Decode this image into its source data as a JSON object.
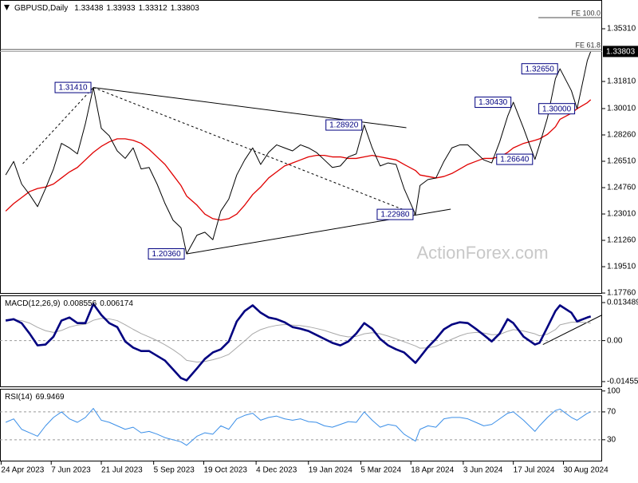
{
  "chart_data": [
    {
      "type": "line",
      "title": "GBPUSD,Daily",
      "header_values": [
        1.33438,
        1.33933,
        1.33312,
        1.33803
      ],
      "x": [
        "2023-04-28",
        "2023-05-05",
        "2023-05-12",
        "2023-05-19",
        "2023-05-26",
        "2023-06-02",
        "2023-06-09",
        "2023-06-16",
        "2023-06-23",
        "2023-06-30",
        "2023-07-07",
        "2023-07-14",
        "2023-07-21",
        "2023-07-28",
        "2023-08-04",
        "2023-08-11",
        "2023-08-18",
        "2023-08-25",
        "2023-09-01",
        "2023-09-08",
        "2023-09-15",
        "2023-09-22",
        "2023-09-29",
        "2023-10-04",
        "2023-10-13",
        "2023-10-20",
        "2023-10-27",
        "2023-11-03",
        "2023-11-10",
        "2023-11-17",
        "2023-11-24",
        "2023-12-01",
        "2023-12-08",
        "2023-12-15",
        "2023-12-22",
        "2023-12-29",
        "2024-01-05",
        "2024-01-12",
        "2024-01-19",
        "2024-01-26",
        "2024-02-02",
        "2024-02-09",
        "2024-02-16",
        "2024-02-23",
        "2024-03-01",
        "2024-03-08",
        "2024-03-15",
        "2024-03-22",
        "2024-03-29",
        "2024-04-05",
        "2024-04-12",
        "2024-04-22",
        "2024-04-26",
        "2024-05-03",
        "2024-05-10",
        "2024-05-17",
        "2024-05-24",
        "2024-05-31",
        "2024-06-07",
        "2024-06-14",
        "2024-06-21",
        "2024-06-28",
        "2024-07-05",
        "2024-07-12",
        "2024-07-17",
        "2024-07-26",
        "2024-08-05",
        "2024-08-09",
        "2024-08-16",
        "2024-08-23",
        "2024-08-27",
        "2024-09-06",
        "2024-09-11",
        "2024-09-20",
        "2024-09-23"
      ],
      "series": [
        {
          "color": "#000000",
          "width": 1,
          "values": [
            1.256,
            1.265,
            1.25,
            1.243,
            1.235,
            1.247,
            1.26,
            1.277,
            1.274,
            1.27,
            1.29,
            1.3141,
            1.287,
            1.282,
            1.272,
            1.267,
            1.274,
            1.26,
            1.261,
            1.25,
            1.237,
            1.226,
            1.221,
            1.2036,
            1.216,
            1.218,
            1.213,
            1.232,
            1.24,
            1.256,
            1.266,
            1.274,
            1.263,
            1.271,
            1.276,
            1.274,
            1.272,
            1.276,
            1.274,
            1.271,
            1.266,
            1.261,
            1.262,
            1.268,
            1.27,
            1.2892,
            1.274,
            1.262,
            1.264,
            1.263,
            1.247,
            1.2298,
            1.249,
            1.253,
            1.254,
            1.265,
            1.274,
            1.276,
            1.276,
            1.271,
            1.266,
            1.264,
            1.278,
            1.295,
            1.3043,
            1.287,
            1.2664,
            1.276,
            1.294,
            1.32,
            1.3265,
            1.312,
            1.3,
            1.332,
            1.33803
          ]
        },
        {
          "color": "#e00000",
          "width": 1.3,
          "values": [
            1.232,
            1.237,
            1.241,
            1.245,
            1.247,
            1.248,
            1.25,
            1.254,
            1.258,
            1.261,
            1.266,
            1.271,
            1.275,
            1.278,
            1.28,
            1.28,
            1.279,
            1.277,
            1.273,
            1.268,
            1.263,
            1.256,
            1.249,
            1.242,
            1.236,
            1.23,
            1.227,
            1.226,
            1.227,
            1.23,
            1.236,
            1.243,
            1.248,
            1.254,
            1.258,
            1.262,
            1.264,
            1.266,
            1.268,
            1.269,
            1.269,
            1.268,
            1.268,
            1.267,
            1.267,
            1.268,
            1.269,
            1.268,
            1.267,
            1.266,
            1.263,
            1.259,
            1.256,
            1.255,
            1.254,
            1.255,
            1.257,
            1.26,
            1.263,
            1.265,
            1.267,
            1.267,
            1.268,
            1.271,
            1.274,
            1.277,
            1.279,
            1.28,
            1.283,
            1.288,
            1.293,
            1.297,
            1.3,
            1.304,
            1.306
          ]
        }
      ],
      "xlim": [
        "2023-04-23",
        "2024-10-03"
      ],
      "ylim": [
        1.1771,
        1.3722
      ],
      "yticks": [
        {
          "value": 1.1776,
          "label": "1.17760"
        },
        {
          "value": 1.1951,
          "label": "1.19510"
        },
        {
          "value": 1.2126,
          "label": "1.21260"
        },
        {
          "value": 1.2301,
          "label": "1.23010"
        },
        {
          "value": 1.2476,
          "label": "1.24760"
        },
        {
          "value": 1.2651,
          "label": "1.26510"
        },
        {
          "value": 1.2826,
          "label": "1.28260"
        },
        {
          "value": 1.3001,
          "label": "1.30010"
        },
        {
          "value": 1.3181,
          "label": "1.31810"
        },
        {
          "value": 1.3531,
          "label": "1.35310"
        }
      ],
      "annotations": [
        {
          "x": "2023-07-14",
          "value": 1.3141,
          "label": "1.31410"
        },
        {
          "x": "2023-10-04",
          "value": 1.2036,
          "label": "1.20360"
        },
        {
          "x": "2024-03-08",
          "value": 1.2892,
          "label": "1.28920"
        },
        {
          "x": "2024-04-22",
          "value": 1.2298,
          "label": "1.22980"
        },
        {
          "x": "2024-07-17",
          "value": 1.3043,
          "label": "1.30430"
        },
        {
          "x": "2024-08-27",
          "value": 1.3265,
          "label": "1.32650"
        },
        {
          "x": "2024-09-11",
          "value": 1.3,
          "label": "1.30000"
        },
        {
          "x": "2024-08-05",
          "value": 1.2664,
          "label": "1.26640"
        }
      ],
      "trendlines": [
        {
          "x": [
            "2023-07-14",
            "2024-04-14"
          ],
          "y": [
            1.3141,
            1.2874
          ],
          "dashed": false
        },
        {
          "x": [
            "2023-07-14",
            "2024-04-22"
          ],
          "y": [
            1.3141,
            1.2298
          ],
          "dashed": true
        },
        {
          "x": [
            "2023-05-13",
            "2023-07-14"
          ],
          "y": [
            1.2635,
            1.3141
          ],
          "dashed": true
        },
        {
          "x": [
            "2023-10-04",
            "2024-05-23"
          ],
          "y": [
            1.2036,
            1.2333
          ],
          "dashed": false
        }
      ],
      "fib_levels": [
        {
          "label": "FE 100.0",
          "value": 1.3605,
          "from": "2024-08-08"
        },
        {
          "label": "FE 61.8",
          "value": 1.3393
        }
      ],
      "watermark": "ActionForex.com"
    },
    {
      "type": "line",
      "title": "MACD(12,26,9)",
      "header_values": [
        0.008556,
        0.006174
      ],
      "x": [
        "2023-04-28",
        "2023-05-05",
        "2023-05-12",
        "2023-05-19",
        "2023-05-26",
        "2023-06-02",
        "2023-06-09",
        "2023-06-16",
        "2023-06-23",
        "2023-06-30",
        "2023-07-07",
        "2023-07-14",
        "2023-07-21",
        "2023-07-28",
        "2023-08-04",
        "2023-08-11",
        "2023-08-18",
        "2023-08-25",
        "2023-09-01",
        "2023-09-08",
        "2023-09-15",
        "2023-09-22",
        "2023-09-29",
        "2023-10-04",
        "2023-10-13",
        "2023-10-20",
        "2023-10-27",
        "2023-11-03",
        "2023-11-10",
        "2023-11-17",
        "2023-11-24",
        "2023-12-01",
        "2023-12-08",
        "2023-12-15",
        "2023-12-22",
        "2023-12-29",
        "2024-01-05",
        "2024-01-12",
        "2024-01-19",
        "2024-01-26",
        "2024-02-02",
        "2024-02-09",
        "2024-02-16",
        "2024-02-23",
        "2024-03-01",
        "2024-03-08",
        "2024-03-15",
        "2024-03-22",
        "2024-03-29",
        "2024-04-05",
        "2024-04-12",
        "2024-04-22",
        "2024-04-26",
        "2024-05-03",
        "2024-05-10",
        "2024-05-17",
        "2024-05-24",
        "2024-05-31",
        "2024-06-07",
        "2024-06-14",
        "2024-06-21",
        "2024-06-28",
        "2024-07-05",
        "2024-07-12",
        "2024-07-17",
        "2024-07-26",
        "2024-08-05",
        "2024-08-09",
        "2024-08-16",
        "2024-08-23",
        "2024-08-27",
        "2024-09-06",
        "2024-09-11",
        "2024-09-20",
        "2024-09-23"
      ],
      "series": [
        {
          "color": "#000080",
          "width": 2.6,
          "values": [
            0.0071,
            0.0076,
            0.0062,
            0.0025,
            -0.0017,
            -0.0014,
            0.0014,
            0.0071,
            0.0082,
            0.0062,
            0.0062,
            0.013,
            0.0091,
            0.0062,
            0.0048,
            -0.0003,
            -0.0025,
            -0.0037,
            -0.0037,
            -0.0054,
            -0.0071,
            -0.0102,
            -0.0133,
            -0.0141,
            -0.0099,
            -0.0065,
            -0.0042,
            -0.0031,
            -0.0003,
            0.0068,
            0.0105,
            0.0125,
            0.0099,
            0.0082,
            0.0076,
            0.0065,
            0.0048,
            0.0042,
            0.0034,
            0.002,
            0.0006,
            -0.0008,
            -0.0017,
            -0.0003,
            0.0025,
            0.0062,
            0.0042,
            0.0006,
            -0.0017,
            -0.0031,
            -0.0042,
            -0.0079,
            -0.0059,
            -0.0023,
            0.0006,
            0.004,
            0.0057,
            0.0065,
            0.0062,
            0.0042,
            0.002,
            -0.0003,
            0.0025,
            0.0076,
            0.0062,
            0.0014,
            -0.0014,
            -0.0008,
            0.0048,
            0.0105,
            0.0125,
            0.0099,
            0.0068,
            0.0082,
            0.008556
          ]
        },
        {
          "color": "#a8a8a8",
          "width": 1,
          "values": [
            0.0075,
            0.0074,
            0.0071,
            0.0062,
            0.0047,
            0.0035,
            0.0029,
            0.0036,
            0.0048,
            0.0055,
            0.0058,
            0.0072,
            0.0079,
            0.0077,
            0.0071,
            0.0056,
            0.004,
            0.0025,
            0.0013,
            0.0,
            -0.0015,
            -0.0032,
            -0.0052,
            -0.007,
            -0.0076,
            -0.0074,
            -0.0068,
            -0.006,
            -0.0049,
            -0.0025,
            -0.0001,
            0.0024,
            0.0039,
            0.0048,
            0.0054,
            0.0057,
            0.0055,
            0.0053,
            0.0049,
            0.0043,
            0.0036,
            0.0027,
            0.0018,
            0.0013,
            0.0015,
            0.0024,
            0.0028,
            0.0024,
            0.0016,
            0.0006,
            -0.0004,
            -0.0019,
            -0.0027,
            -0.0026,
            -0.002,
            -0.0008,
            0.0005,
            0.0017,
            0.0026,
            0.0029,
            0.0027,
            0.0021,
            0.0022,
            0.0033,
            0.0039,
            0.0034,
            0.0024,
            0.0017,
            0.0023,
            0.0039,
            0.0056,
            0.0065,
            0.0066,
            0.0064,
            0.006174
          ]
        }
      ],
      "xlim": [
        "2023-04-23",
        "2024-10-03"
      ],
      "ylim": [
        -0.016535,
        0.016038
      ],
      "yticks": [
        0.013489,
        {
          "value": 0,
          "label": "0.00"
        },
        -0.014554
      ],
      "levels": [
        0
      ],
      "trendlines": [
        {
          "x": [
            "2024-08-12",
            "2024-10-03"
          ],
          "y": [
            -0.0014,
            0.0091
          ],
          "dashed": false
        }
      ]
    },
    {
      "type": "line",
      "title": "RSI(14)",
      "header_values": [
        69.9469
      ],
      "x": [
        "2023-04-28",
        "2023-05-05",
        "2023-05-12",
        "2023-05-19",
        "2023-05-26",
        "2023-06-02",
        "2023-06-09",
        "2023-06-16",
        "2023-06-23",
        "2023-06-30",
        "2023-07-07",
        "2023-07-14",
        "2023-07-21",
        "2023-07-28",
        "2023-08-04",
        "2023-08-11",
        "2023-08-18",
        "2023-08-25",
        "2023-09-01",
        "2023-09-08",
        "2023-09-15",
        "2023-09-22",
        "2023-09-29",
        "2023-10-04",
        "2023-10-13",
        "2023-10-20",
        "2023-10-27",
        "2023-11-03",
        "2023-11-10",
        "2023-11-17",
        "2023-11-24",
        "2023-12-01",
        "2023-12-08",
        "2023-12-15",
        "2023-12-22",
        "2023-12-29",
        "2024-01-05",
        "2024-01-12",
        "2024-01-19",
        "2024-01-26",
        "2024-02-02",
        "2024-02-09",
        "2024-02-16",
        "2024-02-23",
        "2024-03-01",
        "2024-03-08",
        "2024-03-15",
        "2024-03-22",
        "2024-03-29",
        "2024-04-05",
        "2024-04-12",
        "2024-04-22",
        "2024-04-26",
        "2024-05-03",
        "2024-05-10",
        "2024-05-17",
        "2024-05-24",
        "2024-05-31",
        "2024-06-07",
        "2024-06-14",
        "2024-06-21",
        "2024-06-28",
        "2024-07-05",
        "2024-07-12",
        "2024-07-17",
        "2024-07-26",
        "2024-08-05",
        "2024-08-09",
        "2024-08-16",
        "2024-08-23",
        "2024-08-27",
        "2024-09-06",
        "2024-09-11",
        "2024-09-20",
        "2024-09-23"
      ],
      "series": [
        {
          "color": "#3b8fe8",
          "width": 1,
          "values": [
            55,
            60,
            45,
            40,
            35,
            50,
            62,
            70,
            60,
            55,
            62,
            75,
            58,
            55,
            50,
            45,
            48,
            40,
            42,
            38,
            33,
            30,
            27,
            22,
            35,
            40,
            38,
            50,
            45,
            60,
            65,
            68,
            58,
            62,
            64,
            60,
            58,
            60,
            56,
            55,
            50,
            48,
            52,
            56,
            55,
            70,
            58,
            48,
            52,
            50,
            38,
            28,
            45,
            50,
            48,
            60,
            62,
            62,
            60,
            55,
            50,
            52,
            60,
            68,
            70,
            58,
            42,
            50,
            62,
            72,
            74,
            62,
            58,
            68,
            69.9469
          ]
        }
      ],
      "xlim": [
        "2023-04-23",
        "2024-10-03"
      ],
      "ylim": [
        -1.143,
        103.143
      ],
      "yticks": [
        100,
        70,
        30
      ],
      "levels": [
        70,
        30
      ],
      "xticks": [
        {
          "value": "2023-04-24",
          "label": "24 Apr 2023"
        },
        {
          "value": "2023-06-07",
          "label": "7 Jun 2023"
        },
        {
          "value": "2023-07-21",
          "label": "21 Jul 2023"
        },
        {
          "value": "2023-09-05",
          "label": "5 Sep 2023"
        },
        {
          "value": "2023-10-19",
          "label": "19 Oct 2023"
        },
        {
          "value": "2023-12-04",
          "label": "4 Dec 2023"
        },
        {
          "value": "2024-01-19",
          "label": "19 Jan 2024"
        },
        {
          "value": "2024-03-05",
          "label": "5 Mar 2024"
        },
        {
          "value": "2024-04-18",
          "label": "18 Apr 2024"
        },
        {
          "value": "2024-06-03",
          "label": "3 Jun 2024"
        },
        {
          "value": "2024-07-17",
          "label": "17 Jul 2024"
        },
        {
          "value": "2024-08-30",
          "label": "30 Aug 2024"
        }
      ]
    }
  ]
}
